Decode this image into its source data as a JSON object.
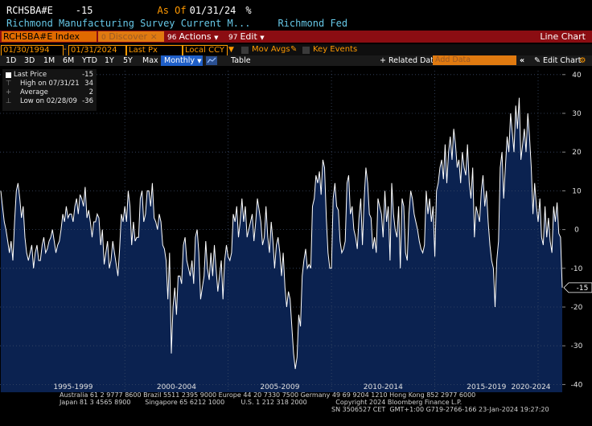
{
  "header": {
    "ticker_code": "RCHSBA#E",
    "last_value": "-15",
    "as_of_label": "As Of",
    "as_of_date": "01/31/24",
    "pct": "%",
    "description": "Richmond Manufacturing Survey Current M...",
    "source": "Richmond Fed"
  },
  "toolbar": {
    "security": "RCHSBA#E Index",
    "discover_label": "Discover",
    "actions_num": "96",
    "actions_label": "Actions",
    "edit_num": "97",
    "edit_label": "Edit",
    "chart_title": "Line Chart"
  },
  "controls": {
    "start_date": "01/30/1994",
    "end_date": "01/31/2024",
    "field": "Last Px",
    "currency": "Local CCY",
    "mov_avgs": "Mov Avgs",
    "key_events": "Key Events"
  },
  "periods": [
    "1D",
    "3D",
    "1M",
    "6M",
    "YTD",
    "1Y",
    "5Y",
    "Max"
  ],
  "frequency": "Monthly",
  "table_label": "Table",
  "related_label": "Related Dat",
  "add_data_placeholder": "Add Data",
  "edit_chart_label": "Edit Chart",
  "legend": {
    "last_price_label": "Last Price",
    "last_price_value": "-15",
    "high_label": "High on 07/31/21",
    "high_value": "34",
    "avg_label": "Average",
    "avg_value": "2",
    "low_label": "Low on 02/28/09",
    "low_value": "-36"
  },
  "colors": {
    "background": "#000000",
    "area_fill": "#0b2250",
    "line": "#ffffff",
    "accent_orange": "#ff9900",
    "header_red": "#8b0d12",
    "cyan_text": "#66c7e6"
  },
  "chart_data": {
    "type": "area",
    "title": "",
    "ylim": [
      -42,
      41
    ],
    "y_ticks": [
      40,
      30,
      20,
      10,
      0,
      -10,
      -20,
      -30,
      -40
    ],
    "x_range": [
      "1994-01",
      "2024-01"
    ],
    "x_labels": [
      "1995-1999",
      "2000-2004",
      "2005-2009",
      "2010-2014",
      "2015-2019",
      "2020-2024"
    ],
    "last_value_label": "-15",
    "grid": true,
    "series": [
      {
        "start": "1994-01",
        "frequency": "monthly",
        "values": [
          10,
          6,
          2,
          0,
          -3,
          -6,
          -3,
          -8,
          2,
          10,
          12,
          8,
          3,
          6,
          -2,
          -6,
          -8,
          -6,
          -4,
          -10,
          -6,
          -4,
          -8,
          -8,
          -4,
          -2,
          -6,
          -5,
          -3,
          -2,
          0,
          -3,
          -6,
          -4,
          -3,
          0,
          4,
          2,
          6,
          3,
          4,
          4,
          2,
          6,
          8,
          4,
          9,
          8,
          6,
          11,
          3,
          5,
          2,
          -2,
          2,
          2,
          4,
          3,
          -4,
          0,
          -9,
          -6,
          -3,
          -10,
          -8,
          -3,
          -6,
          -9,
          -12,
          -5,
          4,
          2,
          6,
          2,
          10,
          6,
          -4,
          2,
          -3,
          -2,
          -2,
          8,
          10,
          2,
          4,
          10,
          10,
          6,
          12,
          3,
          2,
          0,
          4,
          2,
          -4,
          -5,
          -8,
          -18,
          -6,
          -32,
          -20,
          -15,
          -22,
          -12,
          -12,
          -14,
          -4,
          -2,
          -8,
          -10,
          -12,
          -8,
          -14,
          -2,
          0,
          -6,
          -18,
          -15,
          -12,
          -3,
          -10,
          -13,
          -6,
          -12,
          -4,
          -10,
          -16,
          -12,
          -8,
          -18,
          -8,
          -4,
          -7,
          -8,
          -6,
          4,
          2,
          6,
          -2,
          2,
          8,
          2,
          6,
          -2,
          0,
          2,
          4,
          -3,
          2,
          8,
          5,
          2,
          -4,
          -2,
          6,
          -2,
          -6,
          2,
          -3,
          -10,
          -4,
          -2,
          -6,
          -12,
          -6,
          -15,
          -20,
          -16,
          -18,
          -25,
          -32,
          -36,
          -33,
          -22,
          -25,
          -12,
          -8,
          -5,
          -10,
          -9,
          -10,
          6,
          8,
          14,
          12,
          15,
          9,
          18,
          16,
          3,
          -6,
          -10,
          -10,
          8,
          12,
          6,
          5,
          -3,
          -6,
          -5,
          -3,
          12,
          14,
          4,
          6,
          0,
          -2,
          -5,
          3,
          8,
          -4,
          8,
          16,
          12,
          4,
          3,
          -5,
          -2,
          -6,
          8,
          6,
          4,
          -2,
          10,
          2,
          6,
          -8,
          12,
          4,
          0,
          -2,
          6,
          -10,
          8,
          6,
          -6,
          -8,
          4,
          10,
          8,
          4,
          2,
          0,
          -3,
          -5,
          -6,
          -4,
          10,
          4,
          8,
          2,
          6,
          -7,
          10,
          12,
          16,
          18,
          13,
          22,
          12,
          20,
          24,
          18,
          26,
          22,
          16,
          18,
          12,
          20,
          16,
          14,
          22,
          12,
          8,
          16,
          -2,
          6,
          4,
          2,
          10,
          14,
          6,
          10,
          2,
          -4,
          -8,
          -10,
          -20,
          -8,
          -3,
          16,
          20,
          8,
          16,
          24,
          20,
          30,
          25,
          20,
          32,
          26,
          34,
          18,
          22,
          26,
          20,
          30,
          24,
          16,
          4,
          12,
          6,
          2,
          8,
          -2,
          -4,
          6,
          -2,
          3,
          -3,
          -6,
          6,
          2,
          7,
          -1,
          -2,
          -15
        ]
      }
    ]
  },
  "footer": {
    "line1": "Australia 61 2 9777 8600 Brazil 5511 2395 9000 Europe 44 20 7330 7500 Germany 49 69 9204 1210 Hong Kong 852 2977 6000",
    "line2": "Japan 81 3 4565 8900       Singapore 65 6212 1000        U.S. 1 212 318 2000              Copyright 2024 Bloomberg Finance L.P.",
    "line3": "SN 3506527 CET  GMT+1:00 G719-2766-166 23-Jan-2024 19:27:20"
  }
}
